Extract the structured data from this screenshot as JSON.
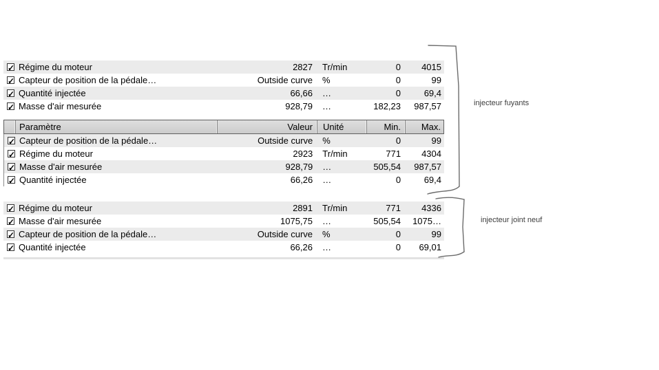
{
  "colors": {
    "row_alt_bg": "#ebebeb",
    "row_bg": "#ffffff",
    "header_bg": "#d6d6d6",
    "header_border": "#5f5f5f",
    "bracket_stroke": "#6b6b6b",
    "text": "#000000",
    "annotation_text": "#3c3c3c"
  },
  "tables": [
    {
      "name": "table-top",
      "rows": [
        {
          "checked": true,
          "param": "Régime du moteur",
          "value": "2827",
          "unit": "Tr/min",
          "min": "0",
          "max": "4015"
        },
        {
          "checked": true,
          "param": "Capteur de position de la pédale…",
          "value": "Outside curve",
          "unit": "%",
          "min": "0",
          "max": "99"
        },
        {
          "checked": true,
          "param": "Quantité injectée",
          "value": "66,66",
          "unit": "…",
          "min": "0",
          "max": "69,4"
        },
        {
          "checked": true,
          "param": "Masse d'air mesurée",
          "value": "928,79",
          "unit": "…",
          "min": "182,23",
          "max": "987,57"
        }
      ]
    },
    {
      "name": "table-middle",
      "header": {
        "param": "Paramètre",
        "value": "Valeur",
        "unit": "Unité",
        "min": "Min.",
        "max": "Max."
      },
      "rows": [
        {
          "checked": true,
          "param": "Capteur de position de la pédale…",
          "value": "Outside curve",
          "unit": "%",
          "min": "0",
          "max": "99"
        },
        {
          "checked": true,
          "param": "Régime du moteur",
          "value": "2923",
          "unit": "Tr/min",
          "min": "771",
          "max": "4304"
        },
        {
          "checked": true,
          "param": "Masse d'air mesurée",
          "value": "928,79",
          "unit": "…",
          "min": "505,54",
          "max": "987,57"
        },
        {
          "checked": true,
          "param": "Quantité injectée",
          "value": "66,26",
          "unit": "…",
          "min": "0",
          "max": "69,4"
        }
      ]
    },
    {
      "name": "table-bottom",
      "rows": [
        {
          "checked": true,
          "param": "Régime du moteur",
          "value": "2891",
          "unit": "Tr/min",
          "min": "771",
          "max": "4336"
        },
        {
          "checked": true,
          "param": "Masse d'air mesurée",
          "value": "1075,75",
          "unit": "…",
          "min": "505,54",
          "max": "1075…"
        },
        {
          "checked": true,
          "param": "Capteur de position de la pédale…",
          "value": "Outside curve",
          "unit": "%",
          "min": "0",
          "max": "99"
        },
        {
          "checked": true,
          "param": "Quantité injectée",
          "value": "66,26",
          "unit": "…",
          "min": "0",
          "max": "69,01"
        }
      ]
    }
  ],
  "annotations": [
    {
      "text": "injecteur fuyants"
    },
    {
      "text": "injecteur joint neuf"
    }
  ]
}
